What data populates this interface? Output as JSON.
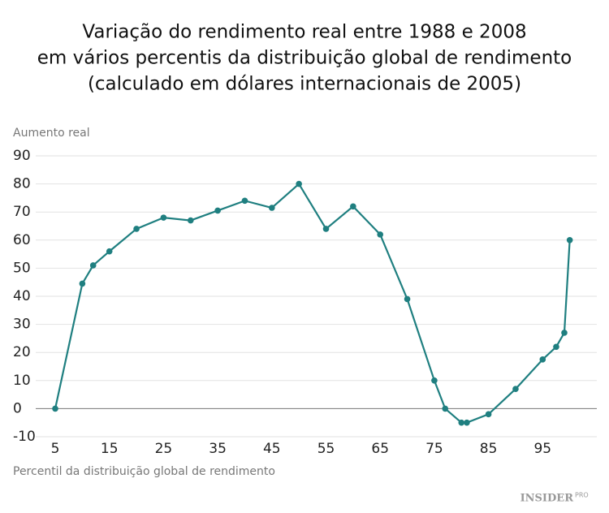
{
  "chart_data": {
    "type": "line",
    "title": [
      "Variação do rendimento real entre 1988 e 2008",
      "em vários percentis da distribuição global de rendimento",
      "(calculado em dólares internacionais de 2005)"
    ],
    "y_label": "Aumento real",
    "x_label": "Percentil da distribuição global de rendimento",
    "brand": "INSIDER",
    "brand_suffix": "PRO",
    "x": [
      5,
      10,
      12,
      15,
      20,
      25,
      30,
      35,
      40,
      45,
      50,
      55,
      60,
      65,
      70,
      75,
      77,
      80,
      81,
      85,
      90,
      95,
      97.5,
      99,
      100
    ],
    "series": [
      {
        "name": "Aumento real",
        "color": "#1f7f80",
        "values": [
          0,
          44.5,
          51,
          56,
          64,
          68,
          67,
          70.5,
          74,
          71.5,
          80,
          64,
          72,
          62,
          39,
          10,
          0,
          -5,
          -5,
          -2,
          7,
          17.5,
          22,
          27,
          60
        ]
      }
    ],
    "xlim": [
      -0.7,
      105
    ],
    "ylim": [
      -10,
      90
    ],
    "xticks": [
      5,
      15,
      25,
      35,
      45,
      55,
      65,
      75,
      85,
      95
    ],
    "yticks": [
      -10,
      0,
      10,
      20,
      30,
      40,
      50,
      60,
      70,
      80,
      90
    ],
    "grid": true
  }
}
